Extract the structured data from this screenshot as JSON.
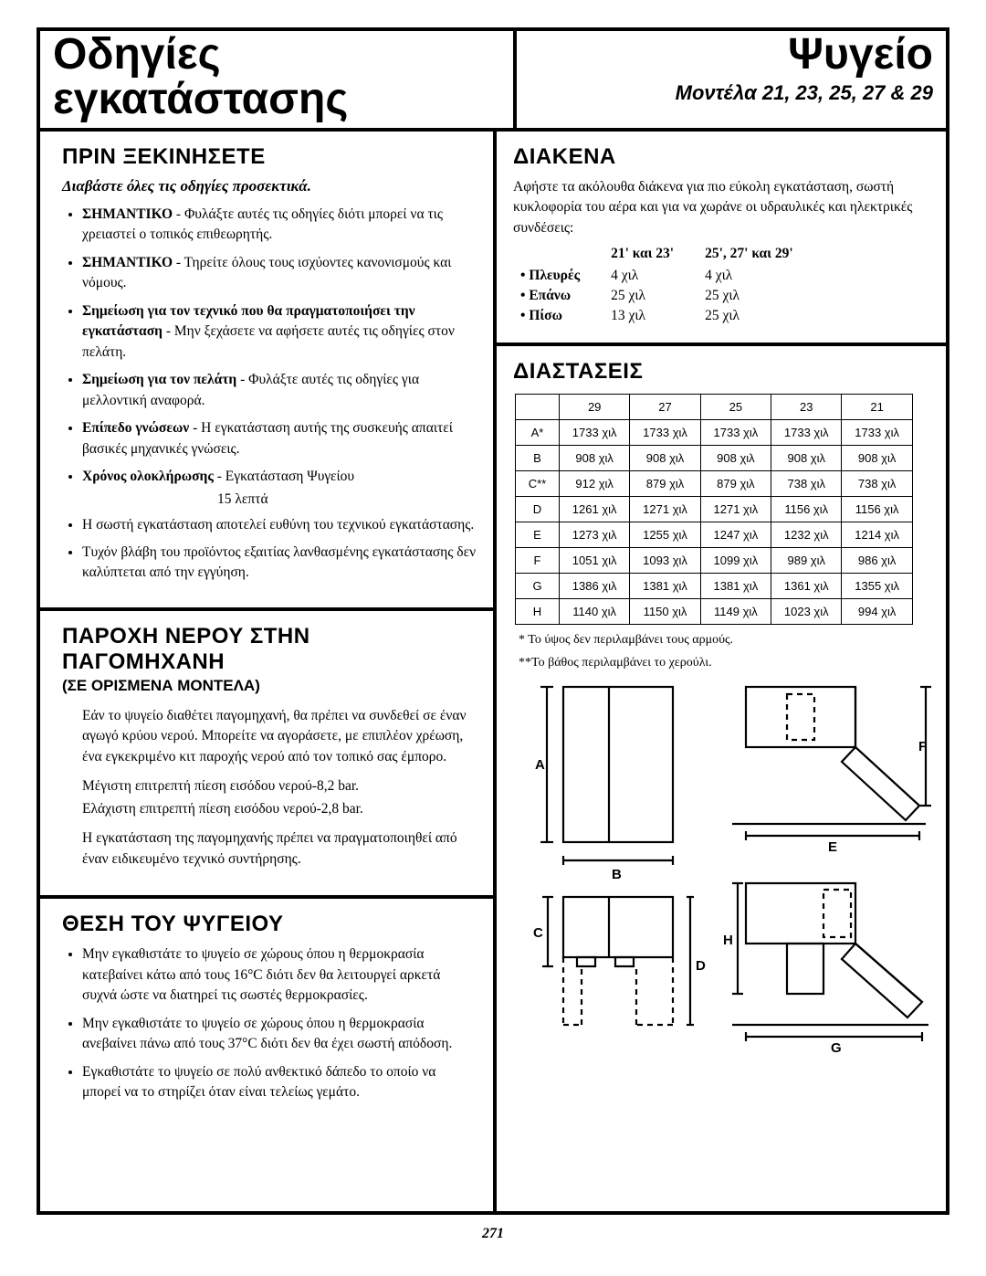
{
  "header": {
    "title_line1": "Οδηγίες",
    "title_line2": "εγκατάστασης",
    "product": "Ψυγείο",
    "models": "Μοντέλα 21, 23, 25, 27 & 29"
  },
  "before": {
    "title": "ΠΡΙΝ ΞΕΚΙΝΗΣΕΤΕ",
    "read_all": "Διαβάστε όλες τις οδηγίες προσεκτικά.",
    "items": [
      {
        "bold": "ΣΗΜΑΝΤΙΚΟ",
        "text": " - Φυλάξτε αυτές τις οδηγίες διότι μπορεί να τις χρειαστεί ο τοπικός επιθεωρητής."
      },
      {
        "bold": "ΣΗΜΑΝΤΙΚΟ",
        "text": " - Τηρείτε όλους τους ισχύοντες κανονισμούς και νόμους."
      },
      {
        "bold": "Σημείωση για τον τεχνικό που θα πραγματοποιήσει την εγκατάσταση",
        "text": " - Μην ξεχάσετε να αφήσετε αυτές τις οδηγίες στον πελάτη."
      },
      {
        "bold": "Σημείωση για τον πελάτη",
        "text": " - Φυλάξτε αυτές τις οδηγίες για μελλοντική αναφορά."
      },
      {
        "bold": "Επίπεδο γνώσεων",
        "text": " - Η εγκατάσταση αυτής της συσκευής απαιτεί βασικές μηχανικές γνώσεις."
      },
      {
        "bold": "Χρόνος ολοκλήρωσης",
        "text": " -   Εγκατάσταση Ψυγείου"
      }
    ],
    "time_line2": "15 λεπτά",
    "tail": [
      "Η σωστή εγκατάσταση αποτελεί ευθύνη του τεχνικού εγκατάστασης.",
      "Τυχόν βλάβη του προϊόντος εξαιτίας λανθασμένης εγκατάστασης δεν καλύπτεται από την εγγύηση."
    ]
  },
  "water": {
    "title": "ΠΑΡΟΧΗ ΝΕΡΟΥ ΣΤΗΝ ΠΑΓΟΜΗΧΑΝΗ",
    "sub": "(ΣΕ ΟΡΙΣΜΕΝΑ ΜΟΝΤΕΛΑ)",
    "p1": "Εάν το ψυγείο διαθέτει παγομηχανή, θα πρέπει να συνδεθεί σε έναν αγωγό κρύου νερού. Μπορείτε να αγοράσετε, με επιπλέον χρέωση, ένα εγκεκριμένο κιτ παροχής νερού από τον τοπικό σας έμπορο.",
    "p2": "Μέγιστη επιτρεπτή πίεση εισόδου νερού-8,2 bar.",
    "p3": "Ελάχιστη επιτρεπτή πίεση εισόδου νερού-2,8 bar.",
    "p4": "Η εγκατάσταση της παγομηχανής πρέπει να πραγματοποιηθεί από έναν ειδικευμένο τεχνικό συντήρησης."
  },
  "location": {
    "title": "ΘΕΣΗ ΤΟΥ ΨΥΓΕΙΟΥ",
    "items": [
      "Μην εγκαθιστάτε το ψυγείο σε χώρους όπου η θερμοκρασία κατεβαίνει κάτω από τους 16°C διότι δεν θα λειτουργεί αρκετά συχνά ώστε να διατηρεί τις σωστές θερμοκρασίες.",
      "Μην εγκαθιστάτε το ψυγείο σε χώρους όπου η θερμοκρασία ανεβαίνει πάνω από τους 37°C διότι δεν θα έχει σωστή απόδοση.",
      "Εγκαθιστάτε το ψυγείο σε πολύ ανθεκτικό δάπεδο το οποίο να μπορεί να το στηρίζει όταν είναι τελείως γεμάτο."
    ]
  },
  "clearances": {
    "title": "ΔΙΑΚΕΝΑ",
    "intro": "Αφήστε τα ακόλουθα διάκενα για πιο εύκολη εγκατάσταση, σωστή κυκλοφορία του αέρα και για να χωράνε οι υδραυλικές και ηλεκτρικές συνδέσεις:",
    "col1": "21' και 23'",
    "col2": "25', 27' και 29'",
    "rows": [
      {
        "label": "Πλευρές",
        "v1": "4 χιλ",
        "v2": "4 χιλ"
      },
      {
        "label": "Επάνω",
        "v1": "25 χιλ",
        "v2": "25 χιλ"
      },
      {
        "label": "Πίσω",
        "v1": "13 χιλ",
        "v2": "25 χιλ"
      }
    ]
  },
  "dimensions": {
    "title": "ΔΙΑΣΤΑΣΕΙΣ",
    "cols": [
      "29",
      "27",
      "25",
      "23",
      "21"
    ],
    "rows": [
      {
        "label": "A*",
        "vals": [
          "1733 χιλ",
          "1733 χιλ",
          "1733 χιλ",
          "1733 χιλ",
          "1733 χιλ"
        ]
      },
      {
        "label": "B",
        "vals": [
          "908 χιλ",
          "908 χιλ",
          "908 χιλ",
          "908 χιλ",
          "908 χιλ"
        ]
      },
      {
        "label": "C**",
        "vals": [
          "912 χιλ",
          "879 χιλ",
          "879 χιλ",
          "738 χιλ",
          "738 χιλ"
        ]
      },
      {
        "label": "D",
        "vals": [
          "1261 χιλ",
          "1271 χιλ",
          "1271 χιλ",
          "1156 χιλ",
          "1156 χιλ"
        ]
      },
      {
        "label": "E",
        "vals": [
          "1273 χιλ",
          "1255 χιλ",
          "1247 χιλ",
          "1232 χιλ",
          "1214 χιλ"
        ]
      },
      {
        "label": "F",
        "vals": [
          "1051 χιλ",
          "1093 χιλ",
          "1099 χιλ",
          "989 χιλ",
          "986 χιλ"
        ]
      },
      {
        "label": "G",
        "vals": [
          "1386 χιλ",
          "1381 χιλ",
          "1381 χιλ",
          "1361 χιλ",
          "1355 χιλ"
        ]
      },
      {
        "label": "H",
        "vals": [
          "1140 χιλ",
          "1150 χιλ",
          "1149 χιλ",
          "1023 χιλ",
          "994 χιλ"
        ]
      }
    ],
    "foot1": "*  Το ύψος δεν περιλαμβάνει τους αρμούς.",
    "foot2": "**Το βάθος περιλαμβάνει το χερούλι."
  },
  "diagram": {
    "labels": {
      "A": "A",
      "B": "B",
      "C": "C",
      "D": "D",
      "E": "E",
      "F": "F",
      "G": "G",
      "H": "H"
    }
  },
  "page_number": "271",
  "colors": {
    "ink": "#000000",
    "bg": "#ffffff"
  }
}
